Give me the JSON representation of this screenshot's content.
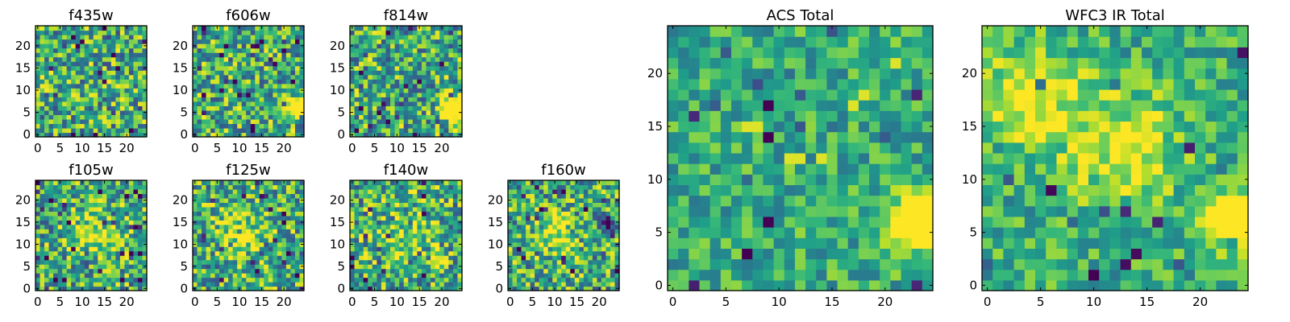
{
  "chart_data": [
    {
      "type": "heatmap",
      "title": "f435w",
      "colormap": "viridis",
      "grid": false,
      "x_ticks": [
        "0",
        "5",
        "10",
        "15",
        "20"
      ],
      "y_ticks": [
        "0",
        "5",
        "10",
        "15",
        "20"
      ],
      "xlim": [
        0,
        24
      ],
      "ylim": [
        0,
        24
      ],
      "cells": [
        25,
        25
      ],
      "features": [],
      "bright_spots": []
    },
    {
      "type": "heatmap",
      "title": "f606w",
      "colormap": "viridis",
      "grid": false,
      "x_ticks": [
        "0",
        "5",
        "10",
        "15",
        "20"
      ],
      "y_ticks": [
        "0",
        "5",
        "10",
        "15",
        "20"
      ],
      "xlim": [
        0,
        24
      ],
      "ylim": [
        0,
        24
      ],
      "cells": [
        25,
        25
      ],
      "features": [
        {
          "x": 23,
          "y": 6,
          "amp": 1.0,
          "sigma": 1.4
        }
      ],
      "bright_spots": []
    },
    {
      "type": "heatmap",
      "title": "f814w",
      "colormap": "viridis",
      "grid": false,
      "x_ticks": [
        "0",
        "5",
        "10",
        "15",
        "20"
      ],
      "y_ticks": [
        "0",
        "5",
        "10",
        "15",
        "20"
      ],
      "xlim": [
        0,
        24
      ],
      "ylim": [
        0,
        24
      ],
      "cells": [
        25,
        25
      ],
      "features": [
        {
          "x": 22.5,
          "y": 6,
          "amp": 1.2,
          "sigma": 1.8
        }
      ],
      "bright_spots": []
    },
    {
      "type": "heatmap",
      "title": "f105w",
      "colormap": "viridis",
      "grid": false,
      "x_ticks": [
        "0",
        "5",
        "10",
        "15",
        "20"
      ],
      "y_ticks": [
        "0",
        "5",
        "10",
        "15",
        "20"
      ],
      "xlim": [
        0,
        24
      ],
      "ylim": [
        0,
        24
      ],
      "cells": [
        25,
        25
      ],
      "features": [
        {
          "x": 13,
          "y": 13,
          "amp": 0.3,
          "sigma": 4
        }
      ],
      "bright_spots": []
    },
    {
      "type": "heatmap",
      "title": "f125w",
      "colormap": "viridis",
      "grid": false,
      "x_ticks": [
        "0",
        "5",
        "10",
        "15",
        "20"
      ],
      "y_ticks": [
        "0",
        "5",
        "10",
        "15",
        "20"
      ],
      "xlim": [
        0,
        24
      ],
      "ylim": [
        0,
        24
      ],
      "cells": [
        25,
        25
      ],
      "features": [
        {
          "x": 10,
          "y": 13,
          "amp": 0.3,
          "sigma": 4
        }
      ],
      "bright_spots": []
    },
    {
      "type": "heatmap",
      "title": "f140w",
      "colormap": "viridis",
      "grid": false,
      "x_ticks": [
        "0",
        "5",
        "10",
        "15",
        "20"
      ],
      "y_ticks": [
        "0",
        "5",
        "10",
        "15",
        "20"
      ],
      "xlim": [
        0,
        24
      ],
      "ylim": [
        0,
        24
      ],
      "cells": [
        25,
        25
      ],
      "features": [
        {
          "x": 12,
          "y": 12,
          "amp": 0.2,
          "sigma": 5
        }
      ],
      "bright_spots": []
    },
    {
      "type": "heatmap",
      "title": "f160w",
      "colormap": "viridis",
      "grid": false,
      "x_ticks": [
        "0",
        "5",
        "10",
        "15",
        "20"
      ],
      "y_ticks": [
        "0",
        "5",
        "10",
        "15",
        "20"
      ],
      "xlim": [
        0,
        24
      ],
      "ylim": [
        0,
        24
      ],
      "cells": [
        25,
        25
      ],
      "features": [
        {
          "x": 10,
          "y": 12,
          "amp": 0.35,
          "sigma": 3
        },
        {
          "x": 22,
          "y": 15,
          "amp": -0.6,
          "sigma": 1.3
        }
      ],
      "bright_spots": []
    },
    {
      "type": "heatmap",
      "title": "ACS Total",
      "colormap": "viridis",
      "grid": false,
      "x_ticks": [
        "0",
        "5",
        "10",
        "15",
        "20"
      ],
      "y_ticks": [
        "0",
        "5",
        "10",
        "15",
        "20"
      ],
      "xlim": [
        0,
        24
      ],
      "ylim": [
        0,
        24
      ],
      "cells": [
        25,
        25
      ],
      "features": [
        {
          "x": 23,
          "y": 6,
          "amp": 1.3,
          "sigma": 1.6
        }
      ],
      "bright_spots": [
        [
          7,
          15.9
        ],
        [
          8,
          15.9
        ],
        [
          17,
          17
        ],
        [
          18,
          18
        ],
        [
          21,
          21.5
        ],
        [
          11,
          12.5
        ],
        [
          12,
          12.5
        ],
        [
          14,
          12
        ]
      ]
    },
    {
      "type": "heatmap",
      "title": "WFC3 IR Total",
      "colormap": "viridis",
      "grid": false,
      "x_ticks": [
        "0",
        "5",
        "10",
        "15",
        "20"
      ],
      "y_ticks": [
        "0",
        "5",
        "10",
        "15",
        "20"
      ],
      "xlim": [
        0,
        24
      ],
      "ylim": [
        0,
        24
      ],
      "cells": [
        25,
        25
      ],
      "features": [
        {
          "x": 23,
          "y": 6.5,
          "amp": 1.0,
          "sigma": 1.6
        },
        {
          "x": 4,
          "y": 18,
          "amp": 0.45,
          "sigma": 3
        },
        {
          "x": 13,
          "y": 13,
          "amp": 0.35,
          "sigma": 4
        }
      ],
      "bright_spots": []
    }
  ]
}
